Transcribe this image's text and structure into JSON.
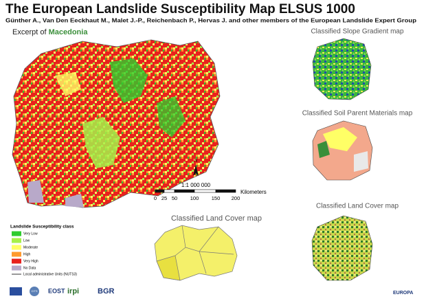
{
  "header": {
    "title": "The European Landslide Susceptibility Map ELSUS 1000",
    "authors": "Günther A., Van Den Eeckhaut M., Malet J.-P., Reichenbach P., Hervas J. and other members of the European Landslide Expert Group",
    "excerpt_prefix": "Excerpt of",
    "excerpt_country": "Macedonia"
  },
  "side_maps": [
    "Classified Slope Gradient map",
    "Classified Soil Parent Materials map",
    "Classified Land Cover map"
  ],
  "center_map": {
    "title": "Classified Land Cover map"
  },
  "scale": {
    "north": "N",
    "ratio": "1:1 000 000",
    "unit": "Kilometers",
    "ticks": [
      "0",
      "25",
      "50",
      "100",
      "150",
      "200"
    ]
  },
  "legend": {
    "title": "Landslide Susceptibility class",
    "items": [
      {
        "label": "Very Low",
        "color": "#2ecc2e"
      },
      {
        "label": "Low",
        "color": "#a6f04a"
      },
      {
        "label": "Moderate",
        "color": "#ffff66"
      },
      {
        "label": "High",
        "color": "#ff9a2e"
      },
      {
        "label": "Very High",
        "color": "#e8211d"
      },
      {
        "label": "No Data",
        "color": "#b8a9c9"
      }
    ],
    "boundary": "Local administrative Units (NUTS3)"
  },
  "logos": [
    "CITS",
    "EOST",
    "irpi",
    "BGR",
    "EUROPA"
  ]
}
